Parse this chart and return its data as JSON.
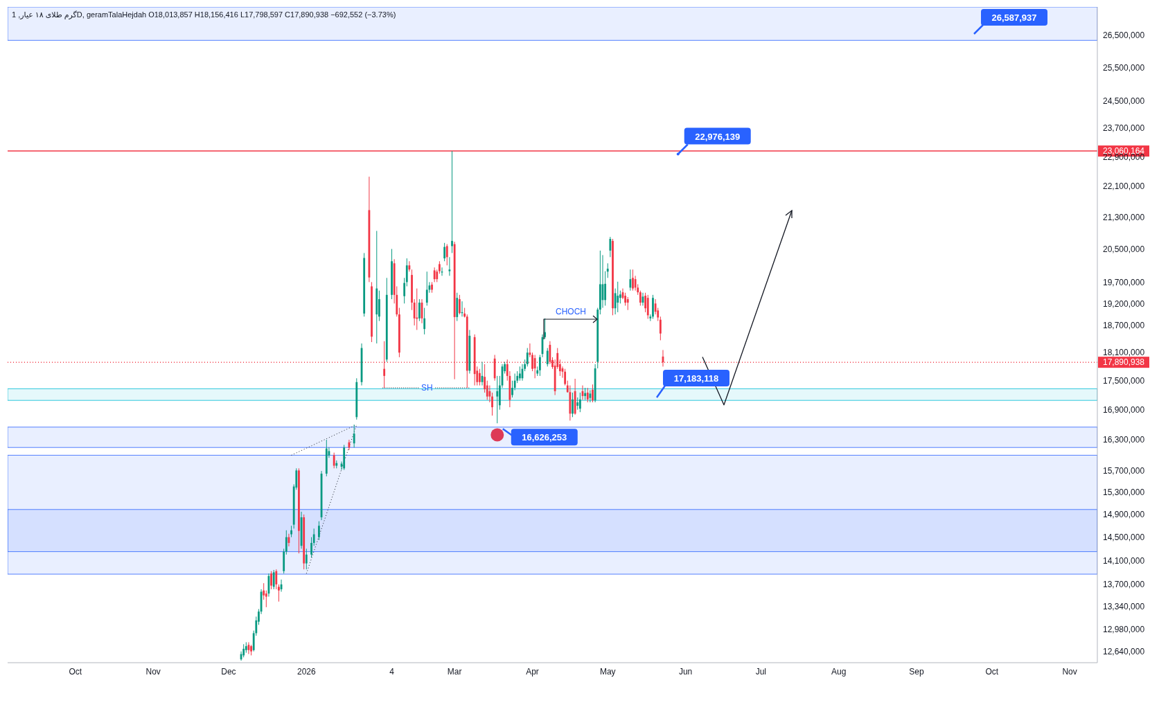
{
  "chart_data": {
    "type": "candlestick",
    "log": true,
    "xlim": [
      "2025-09-04",
      "2026-11-12"
    ],
    "xticks": [
      {
        "value": "2025-10-01",
        "label": "Oct"
      },
      {
        "value": "2025-11-01",
        "label": "Nov"
      },
      {
        "value": "2025-12-01",
        "label": "Dec"
      },
      {
        "value": "2026-01-01",
        "label": "2026"
      },
      {
        "value": "2026-02-04",
        "label": "4"
      },
      {
        "value": "2026-03-01",
        "label": "Mar"
      },
      {
        "value": "2026-04-01",
        "label": "Apr"
      },
      {
        "value": "2026-05-01",
        "label": "May"
      },
      {
        "value": "2026-06-01",
        "label": "Jun"
      },
      {
        "value": "2026-07-01",
        "label": "Jul"
      },
      {
        "value": "2026-08-01",
        "label": "Aug"
      },
      {
        "value": "2026-09-01",
        "label": "Sep"
      },
      {
        "value": "2026-10-01",
        "label": "Oct"
      },
      {
        "value": "2026-11-01",
        "label": "Nov"
      }
    ],
    "ylim": [
      12470000,
      27420000
    ],
    "yticks": [
      {
        "value": 12640000,
        "label": "12,640,000"
      },
      {
        "value": 12980000,
        "label": "12,980,000"
      },
      {
        "value": 13340000,
        "label": "13,340,000"
      },
      {
        "value": 13700000,
        "label": "13,700,000"
      },
      {
        "value": 14100000,
        "label": "14,100,000"
      },
      {
        "value": 14500000,
        "label": "14,500,000"
      },
      {
        "value": 14900000,
        "label": "14,900,000"
      },
      {
        "value": 15300000,
        "label": "15,300,000"
      },
      {
        "value": 15700000,
        "label": "15,700,000"
      },
      {
        "value": 16300000,
        "label": "16,300,000"
      },
      {
        "value": 16900000,
        "label": "16,900,000"
      },
      {
        "value": 17500000,
        "label": "17,500,000"
      },
      {
        "value": 18100000,
        "label": "18,100,000"
      },
      {
        "value": 18700000,
        "label": "18,700,000"
      },
      {
        "value": 19200000,
        "label": "19,200,000"
      },
      {
        "value": 19700000,
        "label": "19,700,000"
      },
      {
        "value": 20500000,
        "label": "20,500,000"
      },
      {
        "value": 21300000,
        "label": "21,300,000"
      },
      {
        "value": 22100000,
        "label": "22,100,000"
      },
      {
        "value": 22900000,
        "label": "22,900,000"
      },
      {
        "value": 23700000,
        "label": "23,700,000"
      },
      {
        "value": 24500000,
        "label": "24,500,000"
      },
      {
        "value": 25500000,
        "label": "25,500,000"
      },
      {
        "value": 26500000,
        "label": "26,500,000"
      }
    ],
    "series": [
      {
        "color": "#089981",
        "x": [
          "2025-12-06",
          "2025-12-07",
          "2025-12-08",
          "2025-12-11",
          "2025-12-12",
          "2025-12-13",
          "2025-12-14",
          "2025-12-17",
          "2025-12-19",
          "2025-12-22",
          "2025-12-23",
          "2025-12-24",
          "2025-12-26",
          "2025-12-27",
          "2025-12-28",
          "2025-12-30",
          "2026-01-01",
          "2026-01-03",
          "2026-01-04",
          "2026-01-06",
          "2026-01-07",
          "2026-01-09",
          "2026-01-10",
          "2026-01-13",
          "2026-01-15",
          "2026-01-16",
          "2026-01-20",
          "2026-01-21",
          "2026-01-23",
          "2026-01-24",
          "2026-01-29",
          "2026-01-30",
          "2026-02-02",
          "2026-02-04",
          "2026-02-09",
          "2026-02-10",
          "2026-02-15",
          "2026-02-17",
          "2026-02-18",
          "2026-02-19",
          "2026-02-24",
          "2026-02-25",
          "2026-02-27",
          "2026-02-28",
          "2026-03-02",
          "2026-03-04",
          "2026-03-07",
          "2026-03-12",
          "2026-03-18",
          "2026-03-19",
          "2026-03-20",
          "2026-03-21",
          "2026-03-24",
          "2026-03-25",
          "2026-03-26",
          "2026-03-27",
          "2026-03-28",
          "2026-03-29",
          "2026-03-30",
          "2026-04-03",
          "2026-04-04",
          "2026-04-05",
          "2026-04-06",
          "2026-04-07",
          "2026-04-17",
          "2026-04-19",
          "2026-04-20",
          "2026-04-22",
          "2026-04-24",
          "2026-04-26",
          "2026-04-27",
          "2026-04-28",
          "2026-04-29",
          "2026-04-30",
          "2026-05-01",
          "2026-05-02",
          "2026-05-04",
          "2026-05-05",
          "2026-05-06",
          "2026-05-10",
          "2026-05-15",
          "2026-05-18",
          "2026-05-19"
        ],
        "ohlc": [
          [
            12520000,
            12640000,
            12500000,
            12600000
          ],
          [
            12580000,
            12750000,
            12550000,
            12680000
          ],
          [
            12660000,
            12780000,
            12620000,
            12720000
          ],
          [
            12660000,
            12960000,
            12640000,
            12920000
          ],
          [
            12920000,
            13180000,
            12880000,
            13120000
          ],
          [
            13100000,
            13300000,
            13050000,
            13260000
          ],
          [
            13260000,
            13620000,
            13220000,
            13580000
          ],
          [
            13550000,
            13880000,
            13500000,
            13840000
          ],
          [
            13660000,
            13940000,
            13620000,
            13900000
          ],
          [
            13620000,
            13780000,
            13580000,
            13700000
          ],
          [
            13920000,
            14300000,
            13880000,
            14250000
          ],
          [
            14250000,
            14620000,
            14200000,
            14500000
          ],
          [
            14550000,
            14700000,
            14500000,
            14620000
          ],
          [
            14720000,
            15450000,
            14650000,
            15410000
          ],
          [
            15390000,
            15750000,
            15350000,
            15710000
          ],
          [
            14350000,
            14950000,
            14300000,
            14850000
          ],
          [
            14050000,
            14300000,
            13950000,
            14200000
          ],
          [
            14200000,
            14500000,
            14150000,
            14400000
          ],
          [
            14400000,
            14650000,
            14350000,
            14550000
          ],
          [
            14500000,
            14780000,
            14450000,
            14700000
          ],
          [
            14850000,
            15700000,
            14800000,
            15650000
          ],
          [
            15650000,
            16300000,
            15600000,
            16130000
          ],
          [
            16000000,
            16150000,
            15950000,
            16080000
          ],
          [
            15800000,
            15900000,
            15750000,
            15850000
          ],
          [
            15780000,
            15880000,
            15720000,
            15840000
          ],
          [
            15750000,
            16200000,
            15720000,
            16150000
          ],
          [
            16230000,
            16600000,
            16150000,
            16420000
          ],
          [
            16750000,
            17550000,
            16700000,
            17470000
          ],
          [
            17470000,
            18300000,
            17400000,
            18200000
          ],
          [
            18970000,
            20400000,
            18900000,
            20280000
          ],
          [
            18950000,
            20950000,
            18300000,
            19550000
          ],
          [
            18900000,
            19500000,
            18800000,
            19300000
          ],
          [
            17950000,
            19800000,
            17900000,
            19400000
          ],
          [
            19400000,
            20500000,
            19300000,
            20200000
          ],
          [
            19370000,
            19800000,
            19200000,
            19680000
          ],
          [
            19700000,
            20270000,
            19600000,
            20100000
          ],
          [
            18860000,
            19300000,
            18800000,
            19220000
          ],
          [
            18620000,
            19100000,
            18500000,
            18860000
          ],
          [
            19220000,
            19950000,
            19150000,
            19520000
          ],
          [
            19520000,
            19700000,
            19450000,
            19620000
          ],
          [
            19930000,
            20050000,
            19850000,
            19950000
          ],
          [
            20270000,
            20650000,
            20200000,
            20550000
          ],
          [
            19960000,
            20300000,
            19850000,
            20000000
          ],
          [
            20570000,
            23060164,
            20400000,
            20700000
          ],
          [
            18890000,
            19450000,
            18800000,
            19330000
          ],
          [
            18980000,
            19250000,
            18900000,
            19000000
          ],
          [
            17710000,
            18600000,
            17650000,
            18470000
          ],
          [
            17470000,
            17900000,
            17400000,
            17600000
          ],
          [
            17170000,
            17600000,
            16626253,
            17280000
          ],
          [
            16990000,
            17600000,
            16900000,
            17400000
          ],
          [
            17400000,
            17850000,
            17350000,
            17800000
          ],
          [
            17700000,
            17900000,
            17650000,
            17850000
          ],
          [
            17200000,
            17500000,
            17150000,
            17350000
          ],
          [
            17350000,
            17650000,
            17300000,
            17500000
          ],
          [
            17500000,
            17700000,
            17450000,
            17600000
          ],
          [
            17550000,
            17800000,
            17500000,
            17650000
          ],
          [
            17550000,
            17850000,
            17500000,
            17750000
          ],
          [
            17750000,
            17950000,
            17700000,
            17850000
          ],
          [
            17850000,
            18200000,
            17800000,
            18100000
          ],
          [
            17650000,
            17800000,
            17600000,
            17720000
          ],
          [
            17720000,
            18050000,
            17600000,
            18000000
          ],
          [
            18070000,
            18500000,
            18000000,
            18440000
          ],
          [
            18440000,
            18860000,
            18400000,
            18550000
          ],
          [
            17850000,
            18200000,
            17800000,
            18140000
          ],
          [
            16820000,
            17250000,
            16750000,
            17110000
          ],
          [
            16980000,
            17150000,
            16900000,
            17050000
          ],
          [
            16920000,
            17250000,
            16850000,
            17110000
          ],
          [
            17180000,
            17350000,
            17100000,
            17240000
          ],
          [
            17140000,
            17300000,
            17050000,
            17230000
          ],
          [
            17090000,
            17850000,
            17050000,
            17760000
          ],
          [
            17900000,
            19100000,
            17760000,
            19060000
          ],
          [
            19060000,
            20460000,
            18950000,
            19650000
          ],
          [
            19280000,
            20350000,
            19100000,
            19650000
          ],
          [
            19280000,
            19960000,
            19150000,
            19660000
          ],
          [
            19950000,
            20150000,
            19800000,
            20020000
          ],
          [
            20460000,
            20800000,
            20300000,
            20750000
          ],
          [
            19090000,
            19550000,
            18950000,
            19440000
          ],
          [
            19220000,
            19710000,
            19000000,
            19380000
          ],
          [
            19330000,
            19500000,
            19200000,
            19410000
          ],
          [
            19570000,
            20000000,
            19500000,
            19770000
          ],
          [
            19220000,
            19450000,
            19150000,
            19360000
          ],
          [
            18860000,
            18950000,
            18800000,
            18900000
          ],
          [
            18900000,
            19400000,
            18850000,
            19330000
          ]
        ]
      },
      {
        "color": "#f23645",
        "x": [
          "2025-12-09",
          "2025-12-10",
          "2025-12-15",
          "2025-12-16",
          "2025-12-18",
          "2025-12-20",
          "2025-12-21",
          "2025-12-25",
          "2025-12-29",
          "2025-12-31",
          "2026-01-12",
          "2026-01-18",
          "2026-01-26",
          "2026-01-27",
          "2026-02-01",
          "2026-02-05",
          "2026-02-06",
          "2026-02-07",
          "2026-02-11",
          "2026-02-12",
          "2026-02-13",
          "2026-02-14",
          "2026-02-16",
          "2026-02-20",
          "2026-02-21",
          "2026-02-22",
          "2026-02-23",
          "2026-02-26",
          "2026-03-01",
          "2026-03-03",
          "2026-03-05",
          "2026-03-06",
          "2026-03-09",
          "2026-03-10",
          "2026-03-11",
          "2026-03-13",
          "2026-03-14",
          "2026-03-15",
          "2026-03-16",
          "2026-03-17",
          "2026-03-22",
          "2026-03-23",
          "2026-03-31",
          "2026-04-01",
          "2026-04-02",
          "2026-04-08",
          "2026-04-09",
          "2026-04-10",
          "2026-04-11",
          "2026-04-12",
          "2026-04-13",
          "2026-04-14",
          "2026-04-15",
          "2026-04-16",
          "2026-04-18",
          "2026-04-21",
          "2026-04-23",
          "2026-04-25",
          "2026-05-03",
          "2026-05-07",
          "2026-05-08",
          "2026-05-09",
          "2026-05-11",
          "2026-05-12",
          "2026-05-13",
          "2026-05-14",
          "2026-05-16",
          "2026-05-17",
          "2026-05-20",
          "2026-05-21",
          "2026-05-22",
          "2026-05-23"
        ],
        "ohlc": [
          [
            12740000,
            12780000,
            12600000,
            12660000
          ],
          [
            12720000,
            12740000,
            12580000,
            12640000
          ],
          [
            13600000,
            13720000,
            13450000,
            13520000
          ],
          [
            13550000,
            13600000,
            13330000,
            13500000
          ],
          [
            13880000,
            13920000,
            13620000,
            13680000
          ],
          [
            13920000,
            13950000,
            13620000,
            13700000
          ],
          [
            13660000,
            13700000,
            13420000,
            13600000
          ],
          [
            14500000,
            14560000,
            14340000,
            14400000
          ],
          [
            15710000,
            15750000,
            14220000,
            14610000
          ],
          [
            14850000,
            14900000,
            13950000,
            14050000
          ],
          [
            16000000,
            16050000,
            15750000,
            15800000
          ],
          [
            16250000,
            16300000,
            16100000,
            16150000
          ],
          [
            21480000,
            22360000,
            19700000,
            19810000
          ],
          [
            19600000,
            19700000,
            18330000,
            18450000
          ],
          [
            17750000,
            18350000,
            17350000,
            17600000
          ],
          [
            20150000,
            20250000,
            19200000,
            19400000
          ],
          [
            19400000,
            19600000,
            18900000,
            18950000
          ],
          [
            18950000,
            19100000,
            18000000,
            18100000
          ],
          [
            20100000,
            20200000,
            19950000,
            20000000
          ],
          [
            19870000,
            20000000,
            19050000,
            19220000
          ],
          [
            19220000,
            19300000,
            18700000,
            18860000
          ],
          [
            18880000,
            19550000,
            18600000,
            18850000
          ],
          [
            19220000,
            19300000,
            18750000,
            18860000
          ],
          [
            19640000,
            19700000,
            19450000,
            19520000
          ],
          [
            19980000,
            20050000,
            19700000,
            19770000
          ],
          [
            19950000,
            20000000,
            19700000,
            19770000
          ],
          [
            20130000,
            20200000,
            19900000,
            19960000
          ],
          [
            20570000,
            20620000,
            20100000,
            20300000
          ],
          [
            20620000,
            20680000,
            17530000,
            18890000
          ],
          [
            19300000,
            19400000,
            18950000,
            18980000
          ],
          [
            18970000,
            19100000,
            18880000,
            18900000
          ],
          [
            18900000,
            18950000,
            17350000,
            17710000
          ],
          [
            18440000,
            18500000,
            17400000,
            17640000
          ],
          [
            17710000,
            17800000,
            17400000,
            17470000
          ],
          [
            17660000,
            17750000,
            17400000,
            17470000
          ],
          [
            17580000,
            17850000,
            17250000,
            17320000
          ],
          [
            17400000,
            17500000,
            17100000,
            17170000
          ],
          [
            17280000,
            17400000,
            17050000,
            17170000
          ],
          [
            17170000,
            17250000,
            16780000,
            16950000
          ],
          [
            17970000,
            18050000,
            17500000,
            17550000
          ],
          [
            17850000,
            17950000,
            17500000,
            17600000
          ],
          [
            17600000,
            17700000,
            16950000,
            17100000
          ],
          [
            18100000,
            18300000,
            18000000,
            18050000
          ],
          [
            18050000,
            18100000,
            17700000,
            17750000
          ],
          [
            17980000,
            18050000,
            17550000,
            17760000
          ],
          [
            18270000,
            18350000,
            17850000,
            17900000
          ],
          [
            17940000,
            18000000,
            17750000,
            17790000
          ],
          [
            17820000,
            17950000,
            17200000,
            17280000
          ],
          [
            18090000,
            18200000,
            17750000,
            17790000
          ],
          [
            17850000,
            17950000,
            17600000,
            17700000
          ],
          [
            17760000,
            17800000,
            17560000,
            17690000
          ],
          [
            17690000,
            17750000,
            17400000,
            17430000
          ],
          [
            17400000,
            17500000,
            17250000,
            17260000
          ],
          [
            17260000,
            17400000,
            16680000,
            16820000
          ],
          [
            17280000,
            17540000,
            16800000,
            16820000
          ],
          [
            17280000,
            17400000,
            17100000,
            17180000
          ],
          [
            17250000,
            17350000,
            17050000,
            17110000
          ],
          [
            17310000,
            17420000,
            17050000,
            17090000
          ],
          [
            20700000,
            20750000,
            18930000,
            19090000
          ],
          [
            19460000,
            19550000,
            19300000,
            19330000
          ],
          [
            19380000,
            19450000,
            19150000,
            19220000
          ],
          [
            19300000,
            19350000,
            19050000,
            19220000
          ],
          [
            19800000,
            20000000,
            19500000,
            19550000
          ],
          [
            19770000,
            19850000,
            19500000,
            19570000
          ],
          [
            19570000,
            19650000,
            19400000,
            19460000
          ],
          [
            19460000,
            19500000,
            19150000,
            19220000
          ],
          [
            19380000,
            19450000,
            19000000,
            19090000
          ],
          [
            19330000,
            19400000,
            18850000,
            18930000
          ],
          [
            19200000,
            19300000,
            18950000,
            19010000
          ],
          [
            19040000,
            19100000,
            18800000,
            18880000
          ],
          [
            18830000,
            18900000,
            18370000,
            18520000
          ],
          [
            18013857,
            18156416,
            17798597,
            17890938
          ]
        ]
      },
      {
        "type": "line",
        "color": "#131722",
        "line_style": "dotted",
        "x": [
          "2025-12-26",
          "2026-01-21"
        ],
        "values": [
          16000000,
          16600000
        ]
      },
      {
        "type": "line",
        "color": "#131722",
        "line_style": "dotted",
        "x": [
          "2026-01-01",
          "2026-01-21"
        ],
        "values": [
          13880000,
          16600000
        ]
      }
    ],
    "ref_lines": [
      {
        "axis": "y",
        "value": 23060164,
        "label": "23,060,164",
        "color": "#f23645"
      },
      {
        "axis": "y",
        "value": 17890938,
        "label": "17,890,938",
        "color": "#f23645",
        "line_style": "dotted"
      }
    ],
    "bands": [
      {
        "axis": "y",
        "from": 26340000,
        "to": 27420000,
        "color": "#2962ff"
      },
      {
        "axis": "y",
        "from": 17090000,
        "to": 17330000,
        "color": "#00bcd4"
      },
      {
        "axis": "y",
        "from": 16150000,
        "to": 16550000,
        "color": "#2962ff"
      },
      {
        "axis": "y",
        "from": 13870000,
        "to": 16000000,
        "color": "#2962ff"
      },
      {
        "axis": "y",
        "from": 14250000,
        "to": 14990000,
        "color": "#2962ff"
      }
    ],
    "annotations": [
      "گرم طلای ۱۸ عیار, 1D, geramTalaHejdah  O18,013,857  H18,156,416  L17,798,597  C17,890,938  −692,552 (−3.73%)",
      {
        "text": "SH",
        "x": "2026-02-18",
        "y": 17350000
      },
      "CHOCH",
      "26,587,937",
      {
        "text": "22,976,139",
        "x": "2026-05-29",
        "y": 22976139
      },
      "17,183,118",
      {
        "text": "16,626,253",
        "x": "2026-03-18",
        "y": 16626253
      }
    ]
  }
}
